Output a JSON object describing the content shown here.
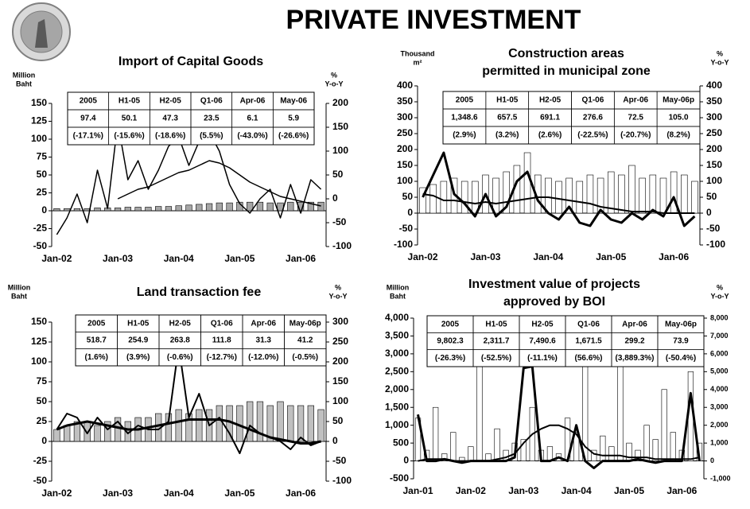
{
  "title": "PRIVATE INVESTMENT",
  "chart_data": [
    {
      "type": "combo",
      "title": [
        "Import of Capital Goods"
      ],
      "y_label": [
        "Million",
        "Baht"
      ],
      "y2_label": [
        "%",
        "Y-o-Y"
      ],
      "categories": [
        "Jan-02",
        null,
        null,
        null,
        null,
        null,
        "Jan-03",
        null,
        null,
        null,
        null,
        null,
        "Jan-04",
        null,
        null,
        null,
        null,
        null,
        "Jan-05",
        null,
        null,
        null,
        null,
        null,
        "Jan-06",
        null,
        null
      ],
      "ylim": [
        -50,
        150
      ],
      "yticks": [
        -50,
        -25,
        0,
        25,
        50,
        75,
        100,
        125,
        150
      ],
      "y2lim": [
        -100,
        200
      ],
      "y2ticks": [
        -100,
        -50,
        0,
        50,
        100,
        150,
        200
      ],
      "series": [
        {
          "type": "bar",
          "color": "#a6a6a6",
          "values": [
            3,
            3,
            3,
            3,
            4,
            4,
            4,
            5,
            5,
            5,
            6,
            6,
            7,
            8,
            9,
            10,
            11,
            11,
            12,
            12,
            12,
            11,
            11,
            12,
            12,
            12,
            12
          ]
        },
        {
          "type": "line",
          "axis": "y2",
          "color": "#000000",
          "line_width": 1.5,
          "values": [
            -75,
            -40,
            10,
            -50,
            60,
            -20,
            160,
            40,
            80,
            20,
            60,
            110,
            130,
            70,
            120,
            140,
            100,
            30,
            -10,
            -30,
            0,
            20,
            -40,
            30,
            -30,
            40,
            20
          ]
        },
        {
          "type": "line",
          "axis": "y2",
          "color": "#000000",
          "line_width": 1.5,
          "values": [
            null,
            null,
            null,
            null,
            null,
            null,
            0,
            10,
            20,
            25,
            35,
            45,
            55,
            60,
            70,
            80,
            75,
            65,
            50,
            35,
            25,
            15,
            5,
            0,
            -5,
            -10,
            -15
          ]
        }
      ],
      "table": {
        "header": [
          "2005",
          "H1-05",
          "H2-05",
          "Q1-06",
          "Apr-06",
          "May-06"
        ],
        "rows": [
          [
            "97.4",
            "50.1",
            "47.3",
            "23.5",
            "6.1",
            "5.9"
          ],
          [
            "(-17.1%)",
            "(-15.6%)",
            "(-18.6%)",
            "(5.5%)",
            "(-43.0%)",
            "(-26.6%)"
          ]
        ]
      }
    },
    {
      "type": "combo",
      "title": [
        "Construction areas",
        "permitted in municipal zone"
      ],
      "y_label": [
        "Thousand",
        "m²"
      ],
      "y2_label": [
        "%",
        "Y-o-Y"
      ],
      "categories": [
        "Jan-02",
        null,
        null,
        null,
        null,
        null,
        "Jan-03",
        null,
        null,
        null,
        null,
        null,
        "Jan-04",
        null,
        null,
        null,
        null,
        null,
        "Jan-05",
        null,
        null,
        null,
        null,
        null,
        "Jan-06",
        null,
        null
      ],
      "ylim": [
        -100,
        400
      ],
      "yticks": [
        -100,
        -50,
        0,
        50,
        100,
        150,
        200,
        250,
        300,
        350,
        400
      ],
      "y2lim": [
        -100,
        400
      ],
      "y2ticks": [
        -100,
        -50,
        0,
        50,
        100,
        150,
        200,
        250,
        300,
        350,
        400
      ],
      "series": [
        {
          "type": "bar",
          "color": "#ffffff",
          "values": [
            80,
            90,
            100,
            110,
            100,
            100,
            120,
            110,
            130,
            150,
            190,
            120,
            110,
            100,
            110,
            100,
            120,
            110,
            130,
            120,
            150,
            110,
            120,
            110,
            130,
            120,
            100
          ]
        },
        {
          "type": "line",
          "axis": "y2",
          "color": "#000000",
          "line_width": 3,
          "values": [
            50,
            120,
            190,
            60,
            30,
            -10,
            60,
            -10,
            20,
            100,
            130,
            40,
            0,
            -20,
            20,
            -30,
            -40,
            10,
            -20,
            -30,
            0,
            -20,
            10,
            -10,
            50,
            -40,
            -10
          ]
        },
        {
          "type": "line",
          "axis": "y2",
          "color": "#000000",
          "line_width": 2,
          "values": [
            60,
            55,
            40,
            40,
            35,
            30,
            35,
            30,
            35,
            40,
            45,
            50,
            50,
            45,
            40,
            35,
            30,
            20,
            15,
            10,
            5,
            5,
            5,
            0,
            0,
            0,
            0
          ]
        }
      ],
      "table": {
        "header": [
          "2005",
          "H1-05",
          "H2-05",
          "Q1-06",
          "Apr-06",
          "May-06p"
        ],
        "rows": [
          [
            "1,348.6",
            "657.5",
            "691.1",
            "276.6",
            "72.5",
            "105.0"
          ],
          [
            "(2.9%)",
            "(3.2%)",
            "(2.6%)",
            "(-22.5%)",
            "(-20.7%)",
            "(8.2%)"
          ]
        ]
      }
    },
    {
      "type": "combo",
      "title": [
        "Land transaction fee"
      ],
      "y_label": [
        "Million",
        "Baht"
      ],
      "y2_label": [
        "%",
        "Y-o-Y"
      ],
      "categories": [
        "Jan-02",
        null,
        null,
        null,
        null,
        null,
        "Jan-03",
        null,
        null,
        null,
        null,
        null,
        "Jan-04",
        null,
        null,
        null,
        null,
        null,
        "Jan-05",
        null,
        null,
        null,
        null,
        null,
        "Jan-06",
        null,
        null
      ],
      "ylim": [
        -50,
        150
      ],
      "yticks": [
        -50,
        -25,
        0,
        25,
        50,
        75,
        100,
        125,
        150
      ],
      "y2lim": [
        -100,
        300
      ],
      "y2ticks": [
        -100,
        -50,
        0,
        50,
        100,
        150,
        200,
        250,
        300
      ],
      "series": [
        {
          "type": "bar",
          "color": "#c0c0c0",
          "values": [
            15,
            20,
            25,
            25,
            20,
            25,
            30,
            25,
            30,
            30,
            35,
            35,
            40,
            35,
            40,
            40,
            45,
            45,
            45,
            50,
            50,
            45,
            50,
            45,
            45,
            45,
            40
          ]
        },
        {
          "type": "line",
          "axis": "y2",
          "color": "#000000",
          "line_width": 2,
          "values": [
            30,
            70,
            60,
            20,
            60,
            30,
            50,
            20,
            40,
            30,
            30,
            50,
            240,
            60,
            120,
            40,
            60,
            20,
            -30,
            40,
            20,
            10,
            0,
            -20,
            10,
            -10,
            0
          ]
        },
        {
          "type": "line",
          "axis": "y2",
          "color": "#000000",
          "line_width": 3,
          "values": [
            30,
            40,
            45,
            50,
            45,
            40,
            35,
            30,
            30,
            35,
            40,
            45,
            50,
            55,
            55,
            55,
            55,
            50,
            40,
            30,
            20,
            10,
            5,
            0,
            -5,
            -5,
            0
          ]
        }
      ],
      "table": {
        "header": [
          "2005",
          "H1-05",
          "H2-05",
          "Q1-06",
          "Apr-06",
          "May-06p"
        ],
        "rows": [
          [
            "518.7",
            "254.9",
            "263.8",
            "111.8",
            "31.3",
            "41.2"
          ],
          [
            "(1.6%)",
            "(3.9%)",
            "(-0.6%)",
            "(-12.7%)",
            "(-12.0%)",
            "(-0.5%)"
          ]
        ]
      }
    },
    {
      "type": "combo",
      "title": [
        "Investment value of projects",
        "approved by BOI"
      ],
      "y_label": [
        "Million",
        "Baht"
      ],
      "y2_label": [
        "%",
        "Y-o-Y"
      ],
      "categories": [
        "Jan-01",
        null,
        null,
        null,
        null,
        null,
        "Jan-02",
        null,
        null,
        null,
        null,
        null,
        "Jan-03",
        null,
        null,
        null,
        null,
        null,
        "Jan-04",
        null,
        null,
        null,
        null,
        null,
        "Jan-05",
        null,
        null,
        null,
        null,
        null,
        "Jan-06",
        null,
        null
      ],
      "ylim": [
        -500,
        4000
      ],
      "yticks": [
        -500,
        0,
        500,
        {
          "value": 1000,
          "label": "1,000"
        },
        {
          "value": 1500,
          "label": "1,500"
        },
        {
          "value": 2000,
          "label": "2,000"
        },
        {
          "value": 2500,
          "label": "2,500"
        },
        {
          "value": 3000,
          "label": "3,000"
        },
        {
          "value": 3500,
          "label": "3,500"
        },
        {
          "value": 4000,
          "label": "4,000"
        }
      ],
      "y2lim": [
        -1000,
        8000
      ],
      "y2ticks": [
        {
          "value": -1000,
          "label": "-1,000"
        },
        0,
        {
          "value": 1000,
          "label": "1,000"
        },
        {
          "value": 2000,
          "label": "2,000"
        },
        {
          "value": 3000,
          "label": "3,000"
        },
        {
          "value": 4000,
          "label": "4,000"
        },
        {
          "value": 5000,
          "label": "5,000"
        },
        {
          "value": 6000,
          "label": "6,000"
        },
        {
          "value": 7000,
          "label": "7,000"
        },
        {
          "value": 8000,
          "label": "8,000"
        }
      ],
      "series": [
        {
          "type": "bar",
          "color": "#ffffff",
          "values": [
            1200,
            300,
            1500,
            200,
            800,
            100,
            400,
            3000,
            200,
            900,
            300,
            500,
            600,
            1500,
            300,
            400,
            200,
            1200,
            800,
            3100,
            300,
            700,
            400,
            2800,
            500,
            300,
            1000,
            600,
            2000,
            800,
            300,
            2500,
            500
          ]
        },
        {
          "type": "line",
          "axis": "y2",
          "color": "#000000",
          "line_width": 3,
          "values": [
            2600,
            0,
            0,
            100,
            0,
            -100,
            0,
            0,
            0,
            0,
            0,
            200,
            5200,
            5300,
            0,
            0,
            200,
            0,
            2000,
            0,
            -400,
            0,
            0,
            0,
            0,
            100,
            0,
            -100,
            0,
            0,
            0,
            3800,
            0
          ]
        },
        {
          "type": "line",
          "axis": "y2",
          "color": "#000000",
          "line_width": 2,
          "values": [
            0,
            100,
            100,
            100,
            0,
            0,
            0,
            0,
            0,
            100,
            200,
            400,
            1000,
            1500,
            1800,
            2000,
            2000,
            1800,
            1500,
            800,
            400,
            300,
            300,
            300,
            200,
            200,
            200,
            100,
            100,
            100,
            100,
            100,
            200
          ]
        }
      ],
      "table": {
        "header": [
          "2005",
          "H1-05",
          "H2-05",
          "Q1-06",
          "Apr-06",
          "May-06p"
        ],
        "rows": [
          [
            "9,802.3",
            "2,311.7",
            "7,490.6",
            "1,671.5",
            "299.2",
            "73.9"
          ],
          [
            "(-26.3%)",
            "(-52.5%)",
            "(-11.1%)",
            "(56.6%)",
            "(3,889.3%)",
            "(-50.4%)"
          ]
        ]
      }
    }
  ]
}
